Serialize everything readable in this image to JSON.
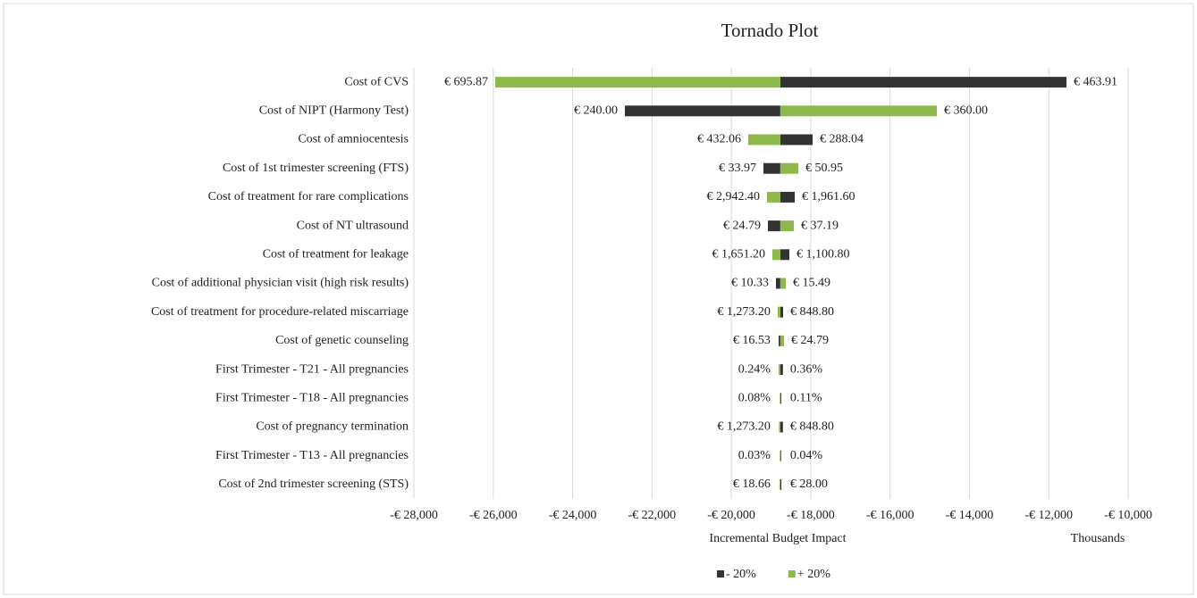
{
  "chart_data": {
    "type": "tornado",
    "title": "Tornado Plot",
    "x_label": "Incremental Budget Impact",
    "x_units": "Thousands",
    "categories": [
      "Cost of CVS",
      "Cost of NIPT (Harmony Test)",
      "Cost of amniocentesis",
      "Cost of 1st trimester screening (FTS)",
      "Cost of treatment for rare complications",
      "Cost of NT ultrasound",
      "Cost of treatment for leakage",
      "Cost of additional physician visit (high risk results)",
      "Cost of treatment for procedure-related miscarriage",
      "Cost of genetic counseling",
      "First Trimester - T21 - All pregnancies",
      "First Trimester - T18 - All pregnancies",
      "Cost of pregnancy termination",
      "First Trimester - T13 - All pregnancies",
      "Cost of 2nd trimester screening (STS)"
    ],
    "base": -18766,
    "series": [
      {
        "name": "- 20%",
        "color": "#333333",
        "values": [
          -11555,
          -22684,
          -17952,
          -19192,
          -18403,
          -19079,
          -18538,
          -18876,
          -18696,
          -18808,
          -18700,
          -18740,
          -18700,
          -18745,
          -18740
        ],
        "labels": [
          "€ 463.91",
          "€ 240.00",
          "€ 288.04",
          "€ 33.97",
          "€ 1,961.60",
          "€ 24.79",
          "€ 1,100.80",
          "€ 10.33",
          "€ 848.80",
          "€ 16.53",
          "0.36%",
          "0.11%",
          "€ 848.80",
          "0.04%",
          "€ 28.00"
        ]
      },
      {
        "name": "+ 20%",
        "color": "#8db84a",
        "values": [
          -25950,
          -14821,
          -19575,
          -18313,
          -19101,
          -18425,
          -18966,
          -18628,
          -18831,
          -18673,
          -18810,
          -18780,
          -18800,
          -18780,
          -18790
        ],
        "labels": [
          "€ 695.87",
          "€ 360.00",
          "€ 432.06",
          "€ 50.95",
          "€ 2,942.40",
          "€ 37.19",
          "€ 1,651.20",
          "€ 15.49",
          "€ 1,273.20",
          "€ 24.79",
          "0.24%",
          "0.08%",
          "€ 1,273.20",
          "0.03%",
          "€ 18.66"
        ]
      }
    ],
    "xlim": [
      -28000,
      -10000
    ],
    "xticks": [
      {
        "value": -28000,
        "label": "-€ 28,000"
      },
      {
        "value": -26000,
        "label": "-€ 26,000"
      },
      {
        "value": -24000,
        "label": "-€ 24,000"
      },
      {
        "value": -22000,
        "label": "-€ 22,000"
      },
      {
        "value": -20000,
        "label": "-€ 20,000"
      },
      {
        "value": -18000,
        "label": "-€ 18,000"
      },
      {
        "value": -16000,
        "label": "-€ 16,000"
      },
      {
        "value": -14000,
        "label": "-€ 14,000"
      },
      {
        "value": -12000,
        "label": "-€ 12,000"
      },
      {
        "value": -10000,
        "label": "-€ 10,000"
      }
    ],
    "grid": true,
    "legend": "bottom"
  }
}
